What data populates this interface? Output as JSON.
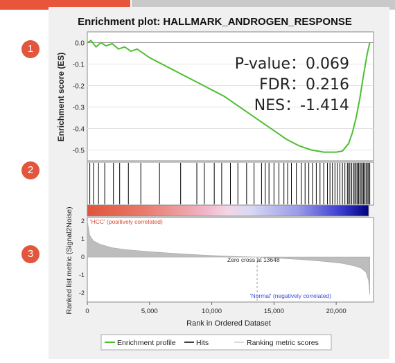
{
  "chart_data": {
    "type": "line",
    "title": "Enrichment plot: HALLMARK_ANDROGEN_RESPONSE",
    "xlabel": "Rank in Ordered Dataset",
    "xlim": [
      0,
      23000
    ],
    "x_ticks": [
      "0",
      "5,000",
      "10,000",
      "15,000",
      "20,000"
    ],
    "x_tick_values": [
      0,
      5000,
      10000,
      15000,
      20000
    ],
    "top_panel": {
      "ylabel": "Enrichment score (ES)",
      "ylim": [
        -0.55,
        0.05
      ],
      "y_ticks": [
        "0.0",
        "-0.1",
        "-0.2",
        "-0.3",
        "-0.4",
        "-0.5"
      ],
      "y_tick_values": [
        0.0,
        -0.1,
        -0.2,
        -0.3,
        -0.4,
        -0.5
      ],
      "series": [
        {
          "name": "Enrichment profile",
          "color": "#4cbf2f",
          "x": [
            0,
            300,
            700,
            1100,
            1500,
            2000,
            2500,
            3000,
            3500,
            4000,
            5000,
            6000,
            7000,
            8000,
            9000,
            10000,
            11000,
            12000,
            13000,
            14000,
            15000,
            16000,
            17000,
            18000,
            19000,
            20000,
            20500,
            21000,
            21300,
            21600,
            21900,
            22200,
            22500,
            22700
          ],
          "y": [
            0.0,
            0.01,
            -0.02,
            0.0,
            -0.015,
            -0.005,
            -0.03,
            -0.02,
            -0.04,
            -0.03,
            -0.07,
            -0.1,
            -0.13,
            -0.16,
            -0.19,
            -0.22,
            -0.25,
            -0.29,
            -0.33,
            -0.37,
            -0.41,
            -0.45,
            -0.48,
            -0.5,
            -0.51,
            -0.51,
            -0.505,
            -0.47,
            -0.42,
            -0.35,
            -0.26,
            -0.15,
            -0.05,
            0.0
          ]
        }
      ]
    },
    "hits": {
      "name": "Hits",
      "color": "#000000",
      "x": [
        200,
        500,
        900,
        1400,
        2100,
        2600,
        3300,
        4300,
        5800,
        7500,
        8800,
        9400,
        10200,
        10800,
        11500,
        12100,
        12800,
        13400,
        14000,
        14300,
        14600,
        15000,
        15400,
        15800,
        16100,
        16400,
        16800,
        17200,
        17500,
        17800,
        18100,
        18400,
        18700,
        19000,
        19300,
        19500,
        19700,
        19900,
        20100,
        20300,
        20500,
        20700,
        20900,
        21000,
        21100,
        21250,
        21400,
        21500,
        21600,
        21700,
        21800,
        21900,
        22000,
        22100,
        22200,
        22300,
        22400,
        22500,
        22600,
        22700
      ]
    },
    "bottom_panel": {
      "ylabel": "Ranked list metric (Signal2Noise)",
      "ylim": [
        -2.5,
        2.2
      ],
      "y_ticks": [
        "2",
        "1",
        "0",
        "-1",
        "-2"
      ],
      "y_tick_values": [
        2,
        1,
        0,
        -1,
        -2
      ],
      "series": [
        {
          "name": "Ranking metric scores",
          "color": "#bdbdbd",
          "x": [
            0,
            200,
            500,
            1000,
            2000,
            3000,
            5000,
            8000,
            10000,
            12000,
            13648,
            15000,
            17000,
            19000,
            20500,
            21500,
            22000,
            22400,
            22600,
            22700
          ],
          "y": [
            2.0,
            1.2,
            0.9,
            0.72,
            0.52,
            0.42,
            0.3,
            0.16,
            0.09,
            0.03,
            0.0,
            -0.05,
            -0.13,
            -0.24,
            -0.35,
            -0.5,
            -0.62,
            -0.85,
            -1.3,
            -2.1
          ]
        }
      ],
      "annotations": {
        "positive": "'HCC' (positively correlated)",
        "zero_cross": "Zero cross at 13648",
        "negative": "'Normal' (negatively correlated)"
      },
      "zero_cross_x": 13648
    },
    "stats": {
      "pvalue": "P-value：0.069",
      "fdr": "FDR：0.216",
      "nes": "NES：-1.414"
    },
    "legend": {
      "placement": "bottom",
      "items": [
        "Enrichment profile",
        "Hits",
        "Ranking metric scores"
      ]
    },
    "steps": [
      "1",
      "2",
      "3"
    ]
  }
}
